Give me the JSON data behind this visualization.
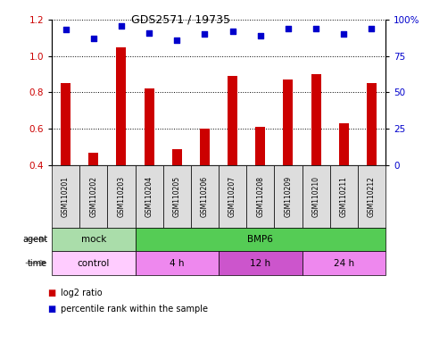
{
  "title": "GDS2571 / 19735",
  "samples": [
    "GSM110201",
    "GSM110202",
    "GSM110203",
    "GSM110204",
    "GSM110205",
    "GSM110206",
    "GSM110207",
    "GSM110208",
    "GSM110209",
    "GSM110210",
    "GSM110211",
    "GSM110212"
  ],
  "log2_ratio": [
    0.85,
    0.47,
    1.05,
    0.82,
    0.49,
    0.6,
    0.89,
    0.61,
    0.87,
    0.9,
    0.63,
    0.85
  ],
  "percentile": [
    93,
    87,
    96,
    91,
    86,
    90,
    92,
    89,
    94,
    94,
    90,
    94
  ],
  "bar_color": "#cc0000",
  "dot_color": "#0000cc",
  "ylim_left": [
    0.4,
    1.2
  ],
  "ylim_right": [
    0,
    100
  ],
  "yticks_left": [
    0.4,
    0.6,
    0.8,
    1.0,
    1.2
  ],
  "yticks_right": [
    0,
    25,
    50,
    75,
    100
  ],
  "agent_groups": [
    {
      "label": "mock",
      "start": 0,
      "end": 3,
      "color": "#aaddaa"
    },
    {
      "label": "BMP6",
      "start": 3,
      "end": 12,
      "color": "#55cc55"
    }
  ],
  "time_groups": [
    {
      "label": "control",
      "start": 0,
      "end": 3,
      "color": "#ffccff"
    },
    {
      "label": "4 h",
      "start": 3,
      "end": 6,
      "color": "#ee88ee"
    },
    {
      "label": "12 h",
      "start": 6,
      "end": 9,
      "color": "#cc55cc"
    },
    {
      "label": "24 h",
      "start": 9,
      "end": 12,
      "color": "#ee88ee"
    }
  ],
  "legend_red_label": "log2 ratio",
  "legend_blue_label": "percentile rank within the sample",
  "sample_bg_color": "#dddddd",
  "bar_width": 0.35
}
